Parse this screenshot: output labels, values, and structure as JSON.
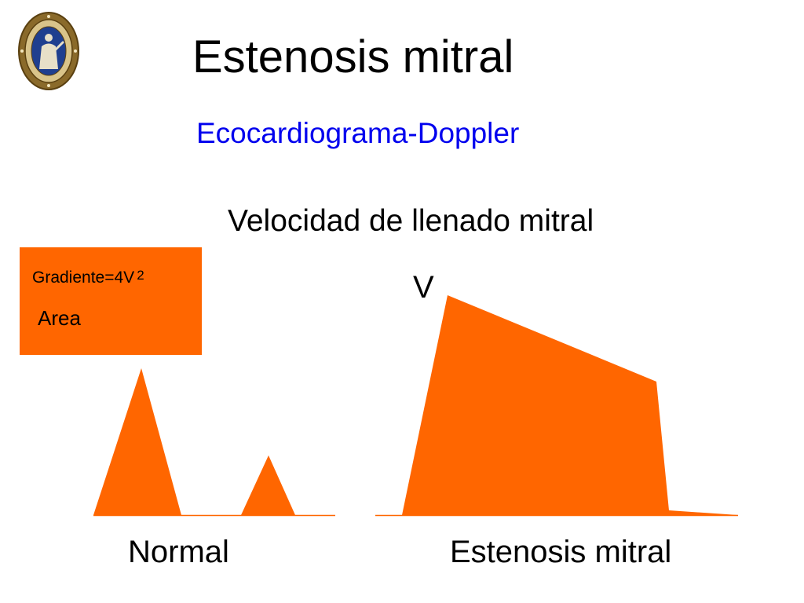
{
  "slide": {
    "title": "Estenosis mitral",
    "subtitle": "Ecocardiograma-Doppler",
    "heading": "Velocidad de llenado mitral"
  },
  "formula_box": {
    "gradient_label": "Gradiente=4V",
    "gradient_exponent": "2",
    "area_label": "Area"
  },
  "axis_label": "V",
  "panels": {
    "normal_label": "Normal",
    "stenosis_label": "Estenosis mitral"
  },
  "logo": {
    "icon": "university-seal-icon"
  },
  "colors": {
    "title_text": "#000000",
    "subtitle_text": "#0000ee",
    "accent_fill": "#ff6600",
    "baseline": "#ff6600",
    "seal_ring": "#7a5a1e",
    "seal_field": "#1f3f8f"
  }
}
